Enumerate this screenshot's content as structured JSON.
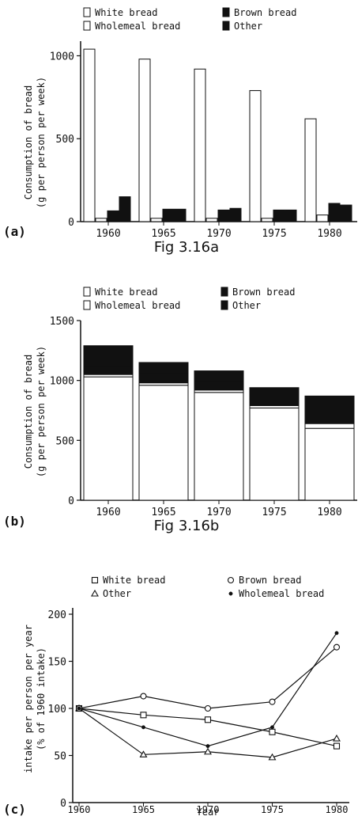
{
  "chart_data": [
    {
      "panel_label": "(a)",
      "caption": "Fig 3.16a",
      "type": "bar",
      "ylabel_line1": "Consumption of bread",
      "ylabel_line2": "(g per person per week)",
      "categories": [
        "1960",
        "1965",
        "1970",
        "1975",
        "1980"
      ],
      "ylim": [
        0,
        1050
      ],
      "yticks": [
        "0",
        "500",
        "1000"
      ],
      "legend": [
        "White bread",
        "Wholemeal bread",
        "Brown bread",
        "Other"
      ],
      "legend_placement": "top",
      "grid": false,
      "series": [
        {
          "name": "White bread",
          "values": [
            1040,
            980,
            920,
            790,
            620
          ],
          "fill": "#ffffff"
        },
        {
          "name": "Wholemeal bread",
          "values": [
            20,
            20,
            20,
            20,
            40
          ],
          "fill": "#ffffff"
        },
        {
          "name": "Brown bread",
          "values": [
            65,
            75,
            70,
            70,
            110
          ],
          "fill": "#111111"
        },
        {
          "name": "Other",
          "values": [
            150,
            75,
            80,
            70,
            100
          ],
          "fill": "#111111"
        }
      ]
    },
    {
      "panel_label": "(b)",
      "caption": "Fig 3.16b",
      "type": "bar",
      "stacked": true,
      "ylabel_line1": "Consumption of bread",
      "ylabel_line2": "(g per person per week)",
      "categories": [
        "1960",
        "1965",
        "1970",
        "1975",
        "1980"
      ],
      "ylim": [
        0,
        1500
      ],
      "yticks": [
        "0",
        "500",
        "1000",
        "1500"
      ],
      "legend": [
        "White bread",
        "Wholemeal bread",
        "Brown bread",
        "Other"
      ],
      "legend_placement": "top",
      "grid": false,
      "series": [
        {
          "name": "White bread",
          "values": [
            1030,
            960,
            900,
            770,
            600
          ],
          "fill": "#ffffff"
        },
        {
          "name": "Wholemeal bread",
          "values": [
            20,
            20,
            20,
            20,
            40
          ],
          "fill": "#ffffff"
        },
        {
          "name": "Brown bread",
          "values": [
            70,
            75,
            70,
            70,
            110
          ],
          "fill": "#111111"
        },
        {
          "name": "Other",
          "values": [
            170,
            95,
            90,
            80,
            120
          ],
          "fill": "#111111"
        }
      ]
    },
    {
      "panel_label": "(c)",
      "type": "line",
      "xlabel": "Year",
      "ylabel_line1": "intake per person per year",
      "ylabel_line2": "(% of 1960 intake)",
      "x": [
        1960,
        1965,
        1970,
        1975,
        1980
      ],
      "xticks": [
        "1960",
        "1965",
        "1970",
        "1975",
        "1980"
      ],
      "ylim": [
        0,
        200
      ],
      "yticks": [
        "0",
        "50",
        "100",
        "150",
        "200"
      ],
      "legend": [
        "White bread",
        "Other",
        "Brown bread",
        "Wholemeal bread"
      ],
      "legend_placement": "top",
      "grid": false,
      "series": [
        {
          "name": "White bread",
          "marker": "square",
          "values": [
            100,
            93,
            88,
            75,
            60
          ]
        },
        {
          "name": "Other",
          "marker": "triangle",
          "values": [
            100,
            51,
            54,
            48,
            68
          ]
        },
        {
          "name": "Brown bread",
          "marker": "circle",
          "values": [
            100,
            113,
            100,
            107,
            165
          ]
        },
        {
          "name": "Wholemeal bread",
          "marker": "dot",
          "values": [
            100,
            80,
            60,
            80,
            180
          ]
        }
      ]
    }
  ]
}
